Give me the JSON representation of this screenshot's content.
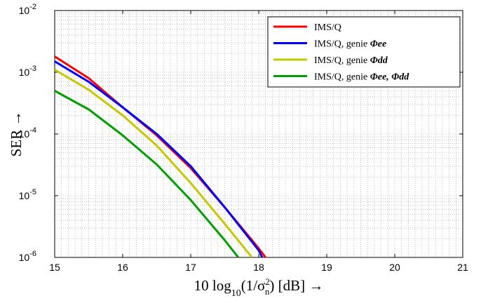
{
  "chart_data": {
    "type": "line",
    "title": "",
    "xlabel": "10 log10(1/σn²) [dB] →",
    "ylabel": "SER →",
    "xlim": [
      15,
      21
    ],
    "ylim": [
      1e-06,
      0.01
    ],
    "yscale": "log",
    "grid": true,
    "legend_position": "top-right",
    "x_ticks": [
      "15",
      "16",
      "17",
      "18",
      "19",
      "20",
      "21"
    ],
    "y_ticks": [
      {
        "base": "10",
        "exp": "-6",
        "value": 1e-06
      },
      {
        "base": "10",
        "exp": "-5",
        "value": 1e-05
      },
      {
        "base": "10",
        "exp": "-4",
        "value": 0.0001
      },
      {
        "base": "10",
        "exp": "-3",
        "value": 0.001
      },
      {
        "base": "10",
        "exp": "-2",
        "value": 0.01
      }
    ],
    "series": [
      {
        "name": "IMS/Q",
        "color": "#ff0000",
        "x": [
          15,
          15.5,
          16,
          16.5,
          17,
          17.5,
          18,
          18.1
        ],
        "y": [
          0.0018,
          0.0008,
          0.00027,
          9.5e-05,
          2.8e-05,
          6.5e-06,
          1.4e-06,
          1e-06
        ]
      },
      {
        "name": "IMS/Q, genie Φee",
        "color": "#0000ff",
        "x": [
          15,
          15.5,
          16,
          16.5,
          17,
          17.5,
          18,
          18.05
        ],
        "y": [
          0.0015,
          0.0007,
          0.00027,
          0.0001,
          3e-05,
          6.5e-06,
          1.3e-06,
          1e-06
        ]
      },
      {
        "name": "IMS/Q, genie Φdd",
        "color": "#c8c800",
        "x": [
          15,
          15.5,
          16,
          16.5,
          17,
          17.5,
          17.9
        ],
        "y": [
          0.0011,
          0.00052,
          0.0002,
          6.5e-05,
          1.6e-05,
          3.5e-06,
          1e-06
        ]
      },
      {
        "name": "IMS/Q, genie Φee, Φdd",
        "color": "#00a000",
        "x": [
          15,
          15.5,
          16,
          16.5,
          17,
          17.5,
          17.7
        ],
        "y": [
          0.0005,
          0.00025,
          9.5e-05,
          3.2e-05,
          8.5e-06,
          1.9e-06,
          1e-06
        ]
      }
    ]
  },
  "legend": {
    "labels": [
      "IMS/Q",
      "IMS/Q, genie ",
      "IMS/Q, genie ",
      "IMS/Q, genie "
    ],
    "math": [
      "",
      "Φee",
      "Φdd",
      "Φee, Φdd"
    ]
  }
}
